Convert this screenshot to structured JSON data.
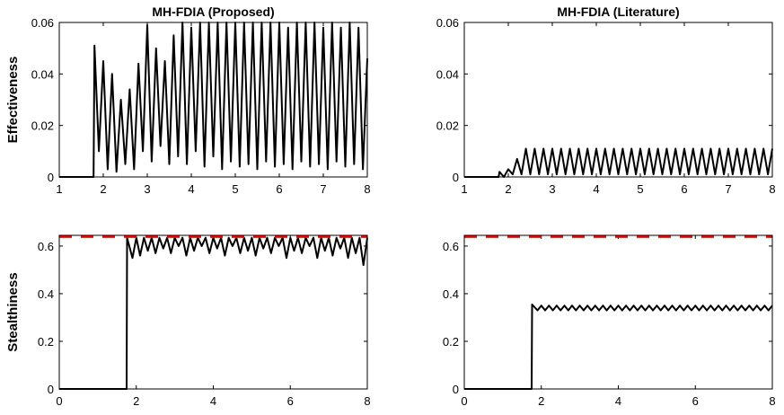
{
  "chart_data": [
    {
      "type": "line",
      "title": "MH-FDIA (Proposed)",
      "ylabel": "Effectiveness",
      "color": "#000000",
      "x": [
        1,
        1.78,
        1.8,
        1.9,
        2,
        2.1,
        2.2,
        2.3,
        2.4,
        2.5,
        2.6,
        2.7,
        2.8,
        2.9,
        3,
        3.1,
        3.2,
        3.3,
        3.4,
        3.5,
        3.6,
        3.7,
        3.8,
        3.9,
        4,
        4.1,
        4.2,
        4.3,
        4.4,
        4.5,
        4.6,
        4.7,
        4.8,
        4.9,
        5,
        5.1,
        5.2,
        5.3,
        5.4,
        5.5,
        5.6,
        5.7,
        5.8,
        5.9,
        6,
        6.1,
        6.2,
        6.3,
        6.4,
        6.5,
        6.6,
        6.7,
        6.8,
        6.9,
        7,
        7.1,
        7.2,
        7.3,
        7.4,
        7.5,
        7.6,
        7.7,
        7.8,
        7.9,
        8
      ],
      "values": [
        0,
        0,
        0.051,
        0.01,
        0.045,
        0.003,
        0.04,
        0.002,
        0.03,
        0.005,
        0.034,
        0.003,
        0.044,
        0.01,
        0.059,
        0.006,
        0.05,
        0.012,
        0.045,
        0.005,
        0.055,
        0.008,
        0.06,
        0.005,
        0.058,
        0.01,
        0.06,
        0.004,
        0.06,
        0.008,
        0.06,
        0.003,
        0.06,
        0.006,
        0.06,
        0.004,
        0.06,
        0.005,
        0.06,
        0.003,
        0.06,
        0.006,
        0.06,
        0.004,
        0.06,
        0.005,
        0.058,
        0.003,
        0.06,
        0.006,
        0.06,
        0.004,
        0.06,
        0.005,
        0.058,
        0.003,
        0.06,
        0.006,
        0.058,
        0.004,
        0.06,
        0.005,
        0.058,
        0.003,
        0.046
      ],
      "xlim": [
        1,
        8
      ],
      "xticks": [
        1,
        2,
        3,
        4,
        5,
        6,
        7,
        8
      ],
      "ylim": [
        0,
        0.06
      ],
      "yticks": [
        0,
        0.02,
        0.04,
        0.06
      ]
    },
    {
      "type": "line",
      "title": "MH-FDIA (Literature)",
      "color": "#000000",
      "x": [
        1,
        1.78,
        1.8,
        1.9,
        2,
        2.1,
        2.2,
        2.3,
        2.4,
        2.5,
        2.6,
        2.7,
        2.8,
        2.9,
        3,
        3.1,
        3.2,
        3.3,
        3.4,
        3.5,
        3.6,
        3.7,
        3.8,
        3.9,
        4,
        4.1,
        4.2,
        4.3,
        4.4,
        4.5,
        4.6,
        4.7,
        4.8,
        4.9,
        5,
        5.1,
        5.2,
        5.3,
        5.4,
        5.5,
        5.6,
        5.7,
        5.8,
        5.9,
        6,
        6.1,
        6.2,
        6.3,
        6.4,
        6.5,
        6.6,
        6.7,
        6.8,
        6.9,
        7,
        7.1,
        7.2,
        7.3,
        7.4,
        7.5,
        7.6,
        7.7,
        7.8,
        7.9,
        8
      ],
      "values": [
        0,
        0,
        0.002,
        0,
        0.003,
        0.001,
        0.007,
        0.001,
        0.011,
        0.001,
        0.011,
        0.001,
        0.011,
        0.001,
        0.011,
        0.001,
        0.011,
        0.001,
        0.011,
        0.001,
        0.011,
        0.001,
        0.011,
        0.001,
        0.011,
        0.001,
        0.011,
        0.001,
        0.011,
        0.001,
        0.011,
        0.001,
        0.011,
        0.001,
        0.011,
        0.001,
        0.011,
        0.001,
        0.011,
        0.001,
        0.011,
        0.001,
        0.011,
        0.001,
        0.011,
        0.001,
        0.011,
        0.001,
        0.011,
        0.001,
        0.011,
        0.001,
        0.011,
        0.001,
        0.011,
        0.001,
        0.011,
        0.001,
        0.011,
        0.001,
        0.011,
        0.001,
        0.011,
        0.001,
        0.011
      ],
      "xlim": [
        1,
        8
      ],
      "xticks": [
        1,
        2,
        3,
        4,
        5,
        6,
        7,
        8
      ],
      "ylim": [
        0,
        0.06
      ],
      "yticks": [
        0,
        0.02,
        0.04,
        0.06
      ]
    },
    {
      "type": "line",
      "ylabel": "Stealthiness",
      "color": "#000000",
      "threshold": {
        "value": 0.64,
        "color": "#ff0000"
      },
      "x": [
        0,
        1.75,
        1.76,
        1.9,
        2,
        2.1,
        2.2,
        2.3,
        2.4,
        2.5,
        2.6,
        2.7,
        2.8,
        2.9,
        3,
        3.1,
        3.2,
        3.3,
        3.4,
        3.5,
        3.6,
        3.7,
        3.8,
        3.9,
        4,
        4.1,
        4.2,
        4.3,
        4.4,
        4.5,
        4.6,
        4.7,
        4.8,
        4.9,
        5,
        5.1,
        5.2,
        5.3,
        5.4,
        5.5,
        5.6,
        5.7,
        5.8,
        5.9,
        6,
        6.1,
        6.2,
        6.3,
        6.4,
        6.5,
        6.6,
        6.7,
        6.8,
        6.9,
        7,
        7.1,
        7.2,
        7.3,
        7.4,
        7.5,
        7.6,
        7.7,
        7.8,
        7.9,
        8
      ],
      "values": [
        0,
        0,
        0.635,
        0.55,
        0.635,
        0.56,
        0.635,
        0.58,
        0.635,
        0.57,
        0.635,
        0.59,
        0.635,
        0.57,
        0.635,
        0.6,
        0.635,
        0.56,
        0.635,
        0.58,
        0.635,
        0.6,
        0.635,
        0.57,
        0.635,
        0.59,
        0.635,
        0.56,
        0.635,
        0.6,
        0.635,
        0.57,
        0.635,
        0.58,
        0.635,
        0.56,
        0.635,
        0.59,
        0.635,
        0.57,
        0.635,
        0.6,
        0.635,
        0.55,
        0.635,
        0.58,
        0.635,
        0.57,
        0.635,
        0.6,
        0.635,
        0.55,
        0.635,
        0.58,
        0.635,
        0.56,
        0.635,
        0.59,
        0.635,
        0.55,
        0.635,
        0.57,
        0.635,
        0.52,
        0.635
      ],
      "xlim": [
        0,
        8
      ],
      "xticks": [
        0,
        2,
        4,
        6,
        8
      ],
      "ylim": [
        0,
        0.645
      ],
      "yticks": [
        0,
        0.2,
        0.4,
        0.6
      ]
    },
    {
      "type": "line",
      "color": "#000000",
      "threshold": {
        "value": 0.64,
        "color": "#ff0000"
      },
      "x": [
        0,
        1.75,
        1.76,
        1.9,
        2,
        2.1,
        2.2,
        2.3,
        2.4,
        2.5,
        2.6,
        2.7,
        2.8,
        2.9,
        3,
        3.1,
        3.2,
        3.3,
        3.4,
        3.5,
        3.6,
        3.7,
        3.8,
        3.9,
        4,
        4.1,
        4.2,
        4.3,
        4.4,
        4.5,
        4.6,
        4.7,
        4.8,
        4.9,
        5,
        5.1,
        5.2,
        5.3,
        5.4,
        5.5,
        5.6,
        5.7,
        5.8,
        5.9,
        6,
        6.1,
        6.2,
        6.3,
        6.4,
        6.5,
        6.6,
        6.7,
        6.8,
        6.9,
        7,
        7.1,
        7.2,
        7.3,
        7.4,
        7.5,
        7.6,
        7.7,
        7.8,
        7.9,
        8
      ],
      "values": [
        0,
        0,
        0.355,
        0.33,
        0.35,
        0.33,
        0.35,
        0.33,
        0.35,
        0.33,
        0.35,
        0.33,
        0.35,
        0.33,
        0.35,
        0.33,
        0.35,
        0.33,
        0.35,
        0.33,
        0.35,
        0.33,
        0.35,
        0.33,
        0.35,
        0.33,
        0.35,
        0.33,
        0.35,
        0.33,
        0.35,
        0.33,
        0.35,
        0.33,
        0.35,
        0.33,
        0.35,
        0.33,
        0.35,
        0.33,
        0.35,
        0.33,
        0.35,
        0.33,
        0.35,
        0.33,
        0.35,
        0.33,
        0.35,
        0.33,
        0.35,
        0.33,
        0.35,
        0.33,
        0.35,
        0.33,
        0.35,
        0.33,
        0.35,
        0.33,
        0.35,
        0.33,
        0.35,
        0.33,
        0.35
      ],
      "xlim": [
        0,
        8
      ],
      "xticks": [
        0,
        2,
        4,
        6,
        8
      ],
      "ylim": [
        0,
        0.645
      ],
      "yticks": [
        0,
        0.2,
        0.4,
        0.6
      ]
    }
  ]
}
